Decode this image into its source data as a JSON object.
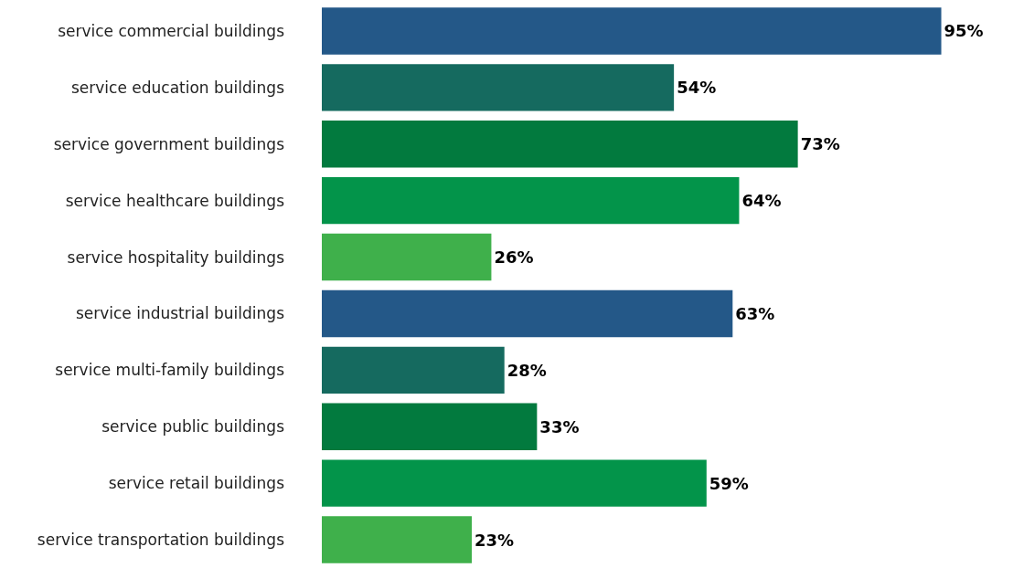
{
  "chart_data": {
    "type": "bar",
    "orientation": "horizontal",
    "categories": [
      "service commercial buildings",
      "service education buildings",
      "service government buildings",
      "service healthcare buildings",
      "service hospitality buildings",
      "service industrial buildings",
      "service multi-family buildings",
      "service public buildings",
      "service retail buildings",
      "service transportation buildings"
    ],
    "values": [
      95,
      54,
      73,
      64,
      26,
      63,
      28,
      33,
      59,
      23
    ],
    "value_labels": [
      "95%",
      "54%",
      "73%",
      "64%",
      "26%",
      "63%",
      "28%",
      "33%",
      "59%",
      "23%"
    ],
    "colors": [
      "#245888",
      "#156a5f",
      "#027a3e",
      "#03944a",
      "#3fb04b",
      "#245888",
      "#156a5f",
      "#027a3e",
      "#03944a",
      "#3fb04b"
    ],
    "xlim": [
      0,
      106
    ],
    "grid": false
  }
}
